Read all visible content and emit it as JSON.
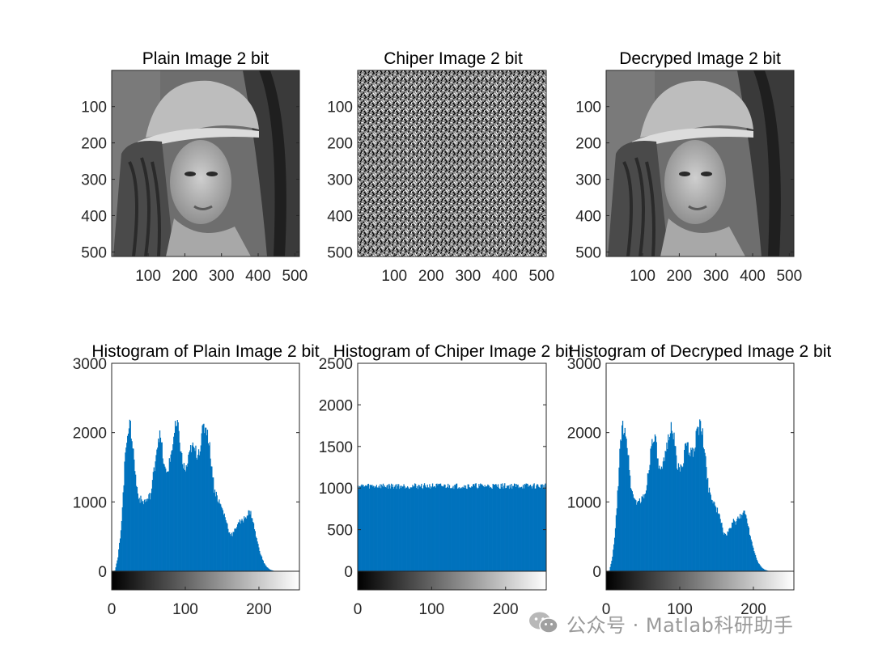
{
  "chart_data": [
    {
      "panel": "plain-image",
      "type": "image",
      "title": "Plain Image 2 bit",
      "xticks": [
        "100",
        "200",
        "300",
        "400",
        "500"
      ],
      "yticks": [
        "100",
        "200",
        "300",
        "400",
        "500"
      ],
      "xlim": [
        0.5,
        512.5
      ],
      "ylim": [
        0.5,
        512.5
      ],
      "colormap": "gray",
      "content": "photograph"
    },
    {
      "panel": "cipher-image",
      "type": "image",
      "title": "Chiper Image 2 bit",
      "xticks": [
        "100",
        "200",
        "300",
        "400",
        "500"
      ],
      "yticks": [
        "100",
        "200",
        "300",
        "400",
        "500"
      ],
      "xlim": [
        0.5,
        512.5
      ],
      "ylim": [
        0.5,
        512.5
      ],
      "colormap": "gray",
      "content": "random noise"
    },
    {
      "panel": "decrypted-image",
      "type": "image",
      "title": "Decryped Image 2 bit",
      "xticks": [
        "100",
        "200",
        "300",
        "400",
        "500"
      ],
      "yticks": [
        "100",
        "200",
        "300",
        "400",
        "500"
      ],
      "xlim": [
        0.5,
        512.5
      ],
      "ylim": [
        0.5,
        512.5
      ],
      "colormap": "gray",
      "content": "photograph"
    },
    {
      "panel": "hist-plain",
      "type": "bar",
      "title": "Histogram of Plain Image 2 bit",
      "xticks": [
        "0",
        "100",
        "200"
      ],
      "yticks": [
        "0",
        "1000",
        "2000",
        "3000"
      ],
      "xlim": [
        0,
        255
      ],
      "ylim": [
        0,
        3000
      ],
      "color": "#0072BD",
      "colorbar": "gray",
      "profile_points": [
        [
          0,
          0
        ],
        [
          4,
          10
        ],
        [
          8,
          200
        ],
        [
          12,
          600
        ],
        [
          15,
          1100
        ],
        [
          18,
          1700
        ],
        [
          21,
          2050
        ],
        [
          24,
          2100
        ],
        [
          27,
          1950
        ],
        [
          30,
          1600
        ],
        [
          33,
          1250
        ],
        [
          37,
          1050
        ],
        [
          42,
          1000
        ],
        [
          48,
          1030
        ],
        [
          53,
          1120
        ],
        [
          57,
          1450
        ],
        [
          61,
          1800
        ],
        [
          64,
          1980
        ],
        [
          67,
          1850
        ],
        [
          71,
          1500
        ],
        [
          74,
          1400
        ],
        [
          78,
          1550
        ],
        [
          82,
          1800
        ],
        [
          86,
          2050
        ],
        [
          89,
          2100
        ],
        [
          92,
          1900
        ],
        [
          96,
          1550
        ],
        [
          100,
          1450
        ],
        [
          104,
          1600
        ],
        [
          108,
          1800
        ],
        [
          112,
          1750
        ],
        [
          116,
          1700
        ],
        [
          120,
          1800
        ],
        [
          124,
          2050
        ],
        [
          128,
          2100
        ],
        [
          131,
          1950
        ],
        [
          135,
          1600
        ],
        [
          139,
          1200
        ],
        [
          144,
          1050
        ],
        [
          150,
          900
        ],
        [
          155,
          750
        ],
        [
          160,
          550
        ],
        [
          164,
          530
        ],
        [
          168,
          600
        ],
        [
          172,
          720
        ],
        [
          176,
          700
        ],
        [
          180,
          760
        ],
        [
          184,
          820
        ],
        [
          188,
          860
        ],
        [
          191,
          780
        ],
        [
          195,
          560
        ],
        [
          199,
          380
        ],
        [
          203,
          230
        ],
        [
          207,
          120
        ],
        [
          211,
          60
        ],
        [
          215,
          25
        ],
        [
          219,
          10
        ],
        [
          223,
          0
        ]
      ]
    },
    {
      "panel": "hist-cipher",
      "type": "bar",
      "title": "Histogram of Chiper Image 2 bit",
      "xticks": [
        "0",
        "100",
        "200"
      ],
      "yticks": [
        "0",
        "500",
        "1000",
        "1500",
        "2000",
        "2500"
      ],
      "xlim": [
        0,
        255
      ],
      "ylim": [
        0,
        2500
      ],
      "color": "#0072BD",
      "colorbar": "gray",
      "mean_value": 1024,
      "fluctuation": 35,
      "profile_points": [
        [
          0,
          1020
        ],
        [
          255,
          1020
        ]
      ]
    },
    {
      "panel": "hist-decrypted",
      "type": "bar",
      "title": "Histogram of Decryped Image 2 bit",
      "xticks": [
        "0",
        "100",
        "200"
      ],
      "yticks": [
        "0",
        "1000",
        "2000",
        "3000"
      ],
      "xlim": [
        0,
        255
      ],
      "ylim": [
        0,
        3000
      ],
      "color": "#0072BD",
      "colorbar": "gray",
      "profile_points": [
        [
          0,
          0
        ],
        [
          4,
          10
        ],
        [
          8,
          200
        ],
        [
          12,
          600
        ],
        [
          15,
          1100
        ],
        [
          18,
          1700
        ],
        [
          21,
          2050
        ],
        [
          24,
          2100
        ],
        [
          27,
          1950
        ],
        [
          30,
          1600
        ],
        [
          33,
          1250
        ],
        [
          37,
          1050
        ],
        [
          42,
          1000
        ],
        [
          48,
          1030
        ],
        [
          53,
          1120
        ],
        [
          57,
          1450
        ],
        [
          61,
          1800
        ],
        [
          64,
          1980
        ],
        [
          67,
          1850
        ],
        [
          71,
          1500
        ],
        [
          74,
          1400
        ],
        [
          78,
          1550
        ],
        [
          82,
          1800
        ],
        [
          86,
          2050
        ],
        [
          89,
          2100
        ],
        [
          92,
          1900
        ],
        [
          96,
          1550
        ],
        [
          100,
          1450
        ],
        [
          104,
          1600
        ],
        [
          108,
          1800
        ],
        [
          112,
          1750
        ],
        [
          116,
          1700
        ],
        [
          120,
          1800
        ],
        [
          124,
          2050
        ],
        [
          128,
          2100
        ],
        [
          131,
          1950
        ],
        [
          135,
          1600
        ],
        [
          139,
          1200
        ],
        [
          144,
          1050
        ],
        [
          150,
          900
        ],
        [
          155,
          750
        ],
        [
          160,
          550
        ],
        [
          164,
          530
        ],
        [
          168,
          600
        ],
        [
          172,
          720
        ],
        [
          176,
          700
        ],
        [
          180,
          760
        ],
        [
          184,
          820
        ],
        [
          188,
          860
        ],
        [
          191,
          780
        ],
        [
          195,
          560
        ],
        [
          199,
          380
        ],
        [
          203,
          230
        ],
        [
          207,
          120
        ],
        [
          211,
          60
        ],
        [
          215,
          25
        ],
        [
          219,
          10
        ],
        [
          223,
          0
        ]
      ]
    }
  ],
  "watermark": {
    "text": "公众号 · Matlab科研助手",
    "icon": "wechat-icon"
  }
}
